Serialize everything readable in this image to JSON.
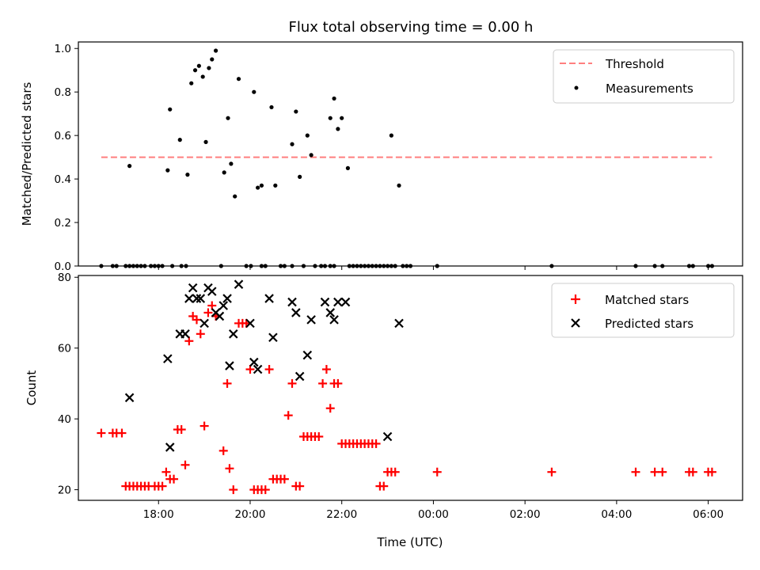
{
  "chart_data": [
    {
      "type": "scatter",
      "title": "Flux total observing time = 0.00 h",
      "xlabel": "",
      "ylabel": "Matched/Predicted stars",
      "ylim": [
        0,
        1.03
      ],
      "yticks": [
        "0.0",
        "0.2",
        "0.4",
        "0.6",
        "0.8",
        "1.0"
      ],
      "xlim": [
        "16:15",
        "06:45"
      ],
      "threshold": {
        "name": "Threshold",
        "y": 0.5,
        "x": [
          "16:45",
          "06:05"
        ],
        "color": "#ff7f7f"
      },
      "series": [
        {
          "name": "Measurements",
          "color": "#000000",
          "points": [
            [
              "17:22",
              0.46
            ],
            [
              "18:12",
              0.44
            ],
            [
              "18:15",
              0.72
            ],
            [
              "18:28",
              0.58
            ],
            [
              "18:38",
              0.42
            ],
            [
              "18:43",
              0.84
            ],
            [
              "18:48",
              0.9
            ],
            [
              "18:53",
              0.92
            ],
            [
              "18:58",
              0.87
            ],
            [
              "19:02",
              0.57
            ],
            [
              "19:06",
              0.91
            ],
            [
              "19:10",
              0.95
            ],
            [
              "19:15",
              0.99
            ],
            [
              "19:26",
              0.43
            ],
            [
              "19:31",
              0.68
            ],
            [
              "19:35",
              0.47
            ],
            [
              "19:40",
              0.32
            ],
            [
              "19:45",
              0.86
            ],
            [
              "20:05",
              0.8
            ],
            [
              "20:10",
              0.36
            ],
            [
              "20:15",
              0.37
            ],
            [
              "20:28",
              0.73
            ],
            [
              "20:33",
              0.37
            ],
            [
              "20:55",
              0.56
            ],
            [
              "21:00",
              0.71
            ],
            [
              "21:05",
              0.41
            ],
            [
              "21:15",
              0.6
            ],
            [
              "21:20",
              0.51
            ],
            [
              "21:45",
              0.68
            ],
            [
              "21:50",
              0.77
            ],
            [
              "21:55",
              0.63
            ],
            [
              "22:00",
              0.68
            ],
            [
              "22:08",
              0.45
            ],
            [
              "23:05",
              0.6
            ],
            [
              "23:15",
              0.37
            ]
          ],
          "zero_x": [
            "16:45",
            "17:00",
            "17:05",
            "17:17",
            "17:22",
            "17:27",
            "17:32",
            "17:37",
            "17:42",
            "17:50",
            "17:55",
            "18:00",
            "18:05",
            "18:18",
            "18:30",
            "18:36",
            "19:22",
            "19:55",
            "20:01",
            "20:15",
            "20:20",
            "20:40",
            "20:45",
            "20:55",
            "21:10",
            "21:25",
            "21:33",
            "21:38",
            "21:45",
            "21:50",
            "22:10",
            "22:15",
            "22:20",
            "22:25",
            "22:30",
            "22:35",
            "22:40",
            "22:45",
            "22:50",
            "22:55",
            "23:00",
            "23:05",
            "23:10",
            "23:20",
            "23:25",
            "23:30",
            "00:05",
            "02:35",
            "04:25",
            "04:50",
            "05:00",
            "05:35",
            "05:40",
            "06:00",
            "06:05"
          ]
        }
      ]
    },
    {
      "type": "scatter",
      "title": "",
      "xlabel": "Time (UTC)",
      "ylabel": "Count",
      "ylim": [
        17,
        80.5
      ],
      "yticks": [
        "20",
        "40",
        "60",
        "80"
      ],
      "xlim": [
        "16:15",
        "06:45"
      ],
      "xticks": [
        "18:00",
        "20:00",
        "22:00",
        "00:00",
        "02:00",
        "04:00",
        "06:00"
      ],
      "series": [
        {
          "name": "Matched stars",
          "marker": "plus",
          "color": "#ff0000",
          "points": [
            [
              "16:45",
              36
            ],
            [
              "17:00",
              36
            ],
            [
              "17:05",
              36
            ],
            [
              "17:12",
              36
            ],
            [
              "17:17",
              21
            ],
            [
              "17:22",
              21
            ],
            [
              "17:27",
              21
            ],
            [
              "17:32",
              21
            ],
            [
              "17:37",
              21
            ],
            [
              "17:42",
              21
            ],
            [
              "17:47",
              21
            ],
            [
              "17:55",
              21
            ],
            [
              "18:00",
              21
            ],
            [
              "18:05",
              21
            ],
            [
              "18:10",
              25
            ],
            [
              "18:15",
              23
            ],
            [
              "18:20",
              23
            ],
            [
              "18:25",
              37
            ],
            [
              "18:30",
              37
            ],
            [
              "18:35",
              27
            ],
            [
              "18:40",
              62
            ],
            [
              "18:45",
              69
            ],
            [
              "18:50",
              68
            ],
            [
              "18:55",
              64
            ],
            [
              "19:00",
              38
            ],
            [
              "19:05",
              70
            ],
            [
              "19:10",
              72
            ],
            [
              "19:15",
              69
            ],
            [
              "19:25",
              31
            ],
            [
              "19:30",
              50
            ],
            [
              "19:33",
              26
            ],
            [
              "19:38",
              20
            ],
            [
              "19:45",
              67
            ],
            [
              "19:50",
              67
            ],
            [
              "19:55",
              67
            ],
            [
              "20:00",
              54
            ],
            [
              "20:05",
              20
            ],
            [
              "20:10",
              20
            ],
            [
              "20:15",
              20
            ],
            [
              "20:20",
              20
            ],
            [
              "20:25",
              54
            ],
            [
              "20:30",
              23
            ],
            [
              "20:35",
              23
            ],
            [
              "20:40",
              23
            ],
            [
              "20:45",
              23
            ],
            [
              "20:50",
              41
            ],
            [
              "20:55",
              50
            ],
            [
              "21:00",
              21
            ],
            [
              "21:05",
              21
            ],
            [
              "21:10",
              35
            ],
            [
              "21:15",
              35
            ],
            [
              "21:20",
              35
            ],
            [
              "21:25",
              35
            ],
            [
              "21:30",
              35
            ],
            [
              "21:35",
              50
            ],
            [
              "21:40",
              54
            ],
            [
              "21:45",
              43
            ],
            [
              "21:50",
              50
            ],
            [
              "21:55",
              50
            ],
            [
              "22:00",
              33
            ],
            [
              "22:05",
              33
            ],
            [
              "22:10",
              33
            ],
            [
              "22:15",
              33
            ],
            [
              "22:20",
              33
            ],
            [
              "22:25",
              33
            ],
            [
              "22:30",
              33
            ],
            [
              "22:35",
              33
            ],
            [
              "22:40",
              33
            ],
            [
              "22:45",
              33
            ],
            [
              "22:50",
              21
            ],
            [
              "22:55",
              21
            ],
            [
              "23:00",
              25
            ],
            [
              "23:05",
              25
            ],
            [
              "23:10",
              25
            ],
            [
              "00:05",
              25
            ],
            [
              "02:35",
              25
            ],
            [
              "04:25",
              25
            ],
            [
              "04:50",
              25
            ],
            [
              "05:00",
              25
            ],
            [
              "05:35",
              25
            ],
            [
              "05:40",
              25
            ],
            [
              "06:00",
              25
            ],
            [
              "06:05",
              25
            ]
          ]
        },
        {
          "name": "Predicted stars",
          "marker": "x",
          "color": "#000000",
          "points": [
            [
              "17:22",
              46
            ],
            [
              "18:12",
              57
            ],
            [
              "18:15",
              32
            ],
            [
              "18:28",
              64
            ],
            [
              "18:35",
              64
            ],
            [
              "18:40",
              74
            ],
            [
              "18:45",
              77
            ],
            [
              "18:50",
              74
            ],
            [
              "18:55",
              74
            ],
            [
              "19:00",
              67
            ],
            [
              "19:05",
              77
            ],
            [
              "19:10",
              76
            ],
            [
              "19:15",
              70
            ],
            [
              "19:20",
              69
            ],
            [
              "19:25",
              72
            ],
            [
              "19:30",
              74
            ],
            [
              "19:33",
              55
            ],
            [
              "19:38",
              64
            ],
            [
              "19:45",
              78
            ],
            [
              "20:00",
              67
            ],
            [
              "20:05",
              56
            ],
            [
              "20:10",
              54
            ],
            [
              "20:25",
              74
            ],
            [
              "20:30",
              63
            ],
            [
              "20:55",
              73
            ],
            [
              "21:00",
              70
            ],
            [
              "21:05",
              52
            ],
            [
              "21:15",
              58
            ],
            [
              "21:20",
              68
            ],
            [
              "21:38",
              73
            ],
            [
              "21:45",
              70
            ],
            [
              "21:50",
              68
            ],
            [
              "21:55",
              73
            ],
            [
              "22:05",
              73
            ],
            [
              "23:00",
              35
            ],
            [
              "23:15",
              67
            ]
          ]
        }
      ]
    }
  ]
}
